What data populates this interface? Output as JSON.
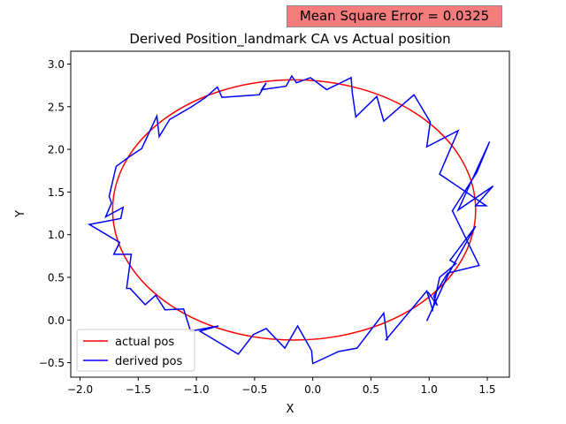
{
  "annotation": "Mean Square Error = 0.0325",
  "chart_data": {
    "type": "line",
    "title": "Derived Position_landmark CA vs Actual position",
    "xlabel": "X",
    "ylabel": "Y",
    "xlim": [
      -2.08,
      1.69
    ],
    "ylim": [
      -0.67,
      3.15
    ],
    "xticks": [
      -2.0,
      -1.5,
      -1.0,
      -0.5,
      0.0,
      0.5,
      1.0,
      1.5
    ],
    "xtick_labels": [
      "−2.0",
      "−1.5",
      "−1.0",
      "−0.5",
      "0.0",
      "0.5",
      "1.0",
      "1.5"
    ],
    "yticks": [
      -0.5,
      0.0,
      0.5,
      1.0,
      1.5,
      2.0,
      2.5,
      3.0
    ],
    "ytick_labels": [
      "−0.5",
      "0.0",
      "0.5",
      "1.0",
      "1.5",
      "2.0",
      "2.5",
      "3.0"
    ],
    "grid": false,
    "legend_placement": "lower-left",
    "series": [
      {
        "name": "actual pos",
        "color": "#ff0000",
        "shape": "ellipse",
        "center": [
          -0.16,
          1.29
        ],
        "radius_x": 1.56,
        "radius_y": 1.525
      },
      {
        "name": "derived pos",
        "color": "#0000ff",
        "x": [
          0.99,
          1.07,
          1.04,
          1.16,
          1.43,
          1.2,
          1.41,
          1.52,
          1.25,
          1.55,
          1.4,
          1.49,
          1.09,
          1.25,
          0.98,
          1.01,
          0.87,
          0.61,
          0.55,
          0.37,
          0.34,
          0.33,
          0.12,
          -0.02,
          -0.14,
          -0.18,
          -0.23,
          -0.44,
          -0.4,
          -0.46,
          -0.78,
          -0.82,
          -0.92,
          -1.04,
          -1.23,
          -1.32,
          -1.34,
          -1.47,
          -1.58,
          -1.69,
          -1.75,
          -1.73,
          -1.78,
          -1.63,
          -1.65,
          -1.92,
          -1.66,
          -1.71,
          -1.56,
          -1.6,
          -1.57,
          -1.44,
          -1.35,
          -1.27,
          -1.11,
          -1.05,
          -0.81,
          -0.97,
          -0.64,
          -0.51,
          -0.4,
          -0.24,
          -0.13,
          -0.01,
          0.0,
          0.22,
          0.38,
          0.61,
          0.64,
          0.63,
          0.98,
          1.03,
          1.09,
          1.23,
          1.18,
          1.18,
          1.23,
          1.4,
          1.17,
          0.98
        ],
        "y": [
          0.33,
          0.17,
          0.28,
          0.55,
          0.64,
          1.28,
          1.73,
          2.09,
          1.29,
          1.57,
          1.34,
          1.34,
          1.71,
          2.22,
          2.03,
          2.32,
          2.64,
          2.33,
          2.62,
          2.38,
          2.66,
          2.84,
          2.7,
          2.84,
          2.78,
          2.86,
          2.74,
          2.7,
          2.78,
          2.64,
          2.61,
          2.73,
          2.61,
          2.5,
          2.35,
          2.15,
          2.39,
          2.01,
          1.91,
          1.8,
          1.45,
          1.37,
          1.21,
          1.32,
          1.19,
          1.12,
          0.91,
          0.77,
          0.77,
          0.37,
          0.37,
          0.18,
          0.29,
          0.12,
          0.13,
          -0.13,
          -0.07,
          -0.13,
          -0.4,
          -0.17,
          -0.1,
          -0.33,
          -0.07,
          -0.36,
          -0.51,
          -0.37,
          -0.33,
          0.08,
          -0.23,
          -0.23,
          0.34,
          0.12,
          0.5,
          0.66,
          0.7,
          0.7,
          0.79,
          1.1,
          0.55,
          -0.01
        ]
      }
    ]
  }
}
